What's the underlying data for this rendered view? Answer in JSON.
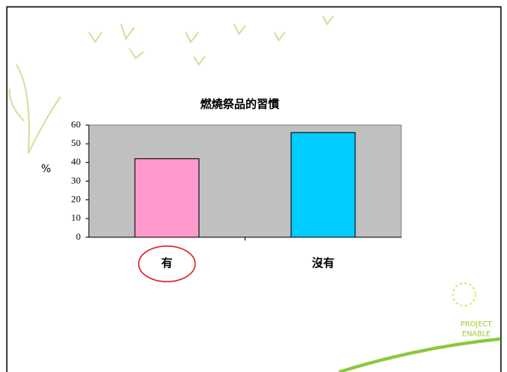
{
  "chart_data": {
    "type": "bar",
    "title": "燃燒祭品的習慣",
    "y_label": "%",
    "categories": [
      "有",
      "沒有"
    ],
    "values": [
      42,
      56
    ],
    "colors": [
      "#ff99cc",
      "#00ccff"
    ],
    "ylim": [
      0,
      60
    ],
    "yticks": [
      0,
      10,
      20,
      30,
      40,
      50,
      60
    ],
    "grid": false,
    "plot_background": "#c0c0c0",
    "highlight_category": 0
  },
  "logo_text": [
    "PROJECT",
    "ENABLE"
  ]
}
